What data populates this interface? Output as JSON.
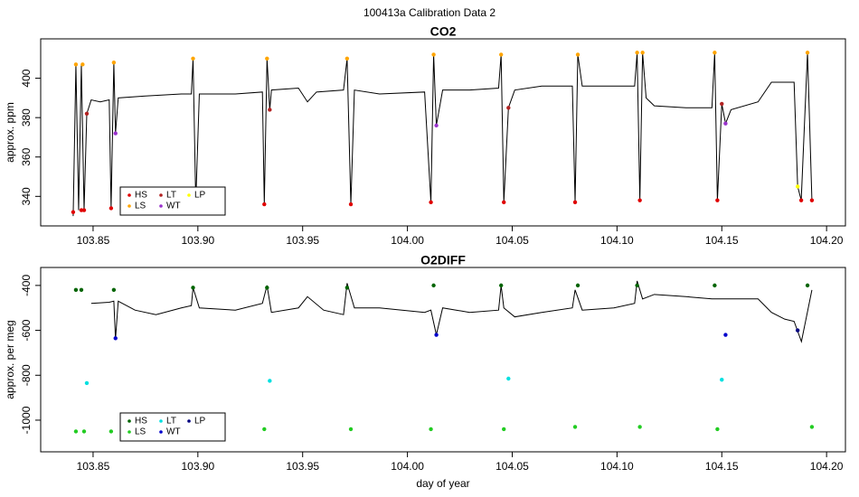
{
  "title": "100413a   Calibration Data 2",
  "chart_data": [
    {
      "type": "line",
      "title": "CO2",
      "ylabel": "approx. ppm",
      "xlim": [
        103.825,
        104.209
      ],
      "ylim": [
        325,
        420
      ],
      "xticks": [
        103.85,
        {
          "value": 103.9,
          "label": "103.90"
        },
        103.95,
        {
          "value": 104.0,
          "label": "104.00"
        },
        104.05,
        {
          "value": 104.1,
          "label": "104.10"
        },
        104.15,
        {
          "value": 104.2,
          "label": "104.20"
        }
      ],
      "yticks": [
        340,
        360,
        380,
        400
      ],
      "legend": "bottomleft",
      "series": [
        {
          "type": "line",
          "color": "#000000",
          "x": [
            103.8405,
            103.8418,
            103.8431,
            103.8444,
            103.8457,
            103.847,
            103.8491,
            103.8534,
            103.8577,
            103.8586,
            103.8599,
            103.8607,
            103.862,
            103.8749,
            103.8921,
            103.8969,
            103.8977,
            103.899,
            103.9007,
            103.9179,
            103.9308,
            103.9317,
            103.933,
            103.9343,
            103.9351,
            103.948,
            103.9523,
            103.9566,
            103.9695,
            103.9712,
            103.973,
            103.9747,
            103.9867,
            104.0082,
            104.0112,
            104.0125,
            104.0138,
            104.0168,
            104.0297,
            104.0435,
            104.0447,
            104.046,
            104.0482,
            104.0512,
            104.0641,
            104.0787,
            104.08,
            104.0813,
            104.0834,
            104.0985,
            104.1084,
            104.1096,
            104.1109,
            104.1122,
            104.1139,
            104.1178,
            104.1329,
            104.1453,
            104.1466,
            104.1479,
            104.15,
            104.1518,
            104.1544,
            104.1673,
            104.1737,
            104.1845,
            104.1862,
            104.1879,
            104.1909,
            104.193
          ],
          "values": [
            330,
            407,
            333,
            407,
            333,
            382,
            389,
            388,
            389,
            334,
            408,
            372,
            390,
            391,
            392,
            392,
            410,
            337,
            392,
            392,
            393,
            336,
            410,
            384,
            394,
            395,
            388,
            393,
            394,
            410,
            336,
            394,
            392,
            393,
            337,
            412,
            376,
            394,
            394,
            395,
            412,
            337,
            385,
            394,
            396,
            396,
            337,
            412,
            396,
            396,
            396,
            413,
            338,
            413,
            390,
            386,
            385,
            385,
            413,
            338,
            387,
            377,
            384,
            388,
            398,
            398,
            345,
            338,
            413,
            338
          ]
        },
        {
          "type": "scatter",
          "name": "HS",
          "color": "#e00000",
          "x": [
            103.8405,
            103.8444,
            103.8457,
            103.8586,
            103.9317,
            103.973,
            104.0112,
            104.046,
            104.08,
            104.1109,
            104.1479,
            104.1879,
            104.193
          ],
          "values": [
            332,
            333,
            333,
            334,
            336,
            336,
            337,
            337,
            337,
            338,
            338,
            338,
            338
          ]
        },
        {
          "type": "scatter",
          "name": "LS",
          "color": "#ffa500",
          "x": [
            103.8418,
            103.845,
            103.8599,
            103.8977,
            103.933,
            103.9712,
            104.0125,
            104.0447,
            104.0813,
            104.1096,
            104.1122,
            104.1466,
            104.1909
          ],
          "values": [
            407,
            407,
            408,
            410,
            410,
            410,
            412,
            412,
            412,
            413,
            413,
            413,
            413
          ]
        },
        {
          "type": "scatter",
          "name": "LT",
          "color": "#b22222",
          "x": [
            103.847,
            103.9343,
            104.0482,
            104.15
          ],
          "values": [
            382,
            384,
            385,
            387
          ]
        },
        {
          "type": "scatter",
          "name": "WT",
          "color": "#9932cc",
          "x": [
            103.8607,
            104.0138,
            104.1518
          ],
          "values": [
            372,
            376,
            377
          ]
        },
        {
          "type": "scatter",
          "name": "LP",
          "color": "#ffff00",
          "x": [
            104.1862
          ],
          "values": [
            345
          ]
        }
      ]
    },
    {
      "type": "line",
      "title": "O2DIFF",
      "ylabel": "approx. per meg",
      "xlabel": "day of year",
      "xlim": [
        103.825,
        104.209
      ],
      "ylim": [
        -1141,
        -320
      ],
      "xticks": [
        103.85,
        {
          "value": 103.9,
          "label": "103.90"
        },
        103.95,
        {
          "value": 104.0,
          "label": "104.00"
        },
        104.05,
        {
          "value": 104.1,
          "label": "104.10"
        },
        104.15,
        {
          "value": 104.2,
          "label": "104.20"
        }
      ],
      "yticks": [
        -1000,
        -800,
        -600,
        -400
      ],
      "legend": "bottomleft",
      "series": [
        {
          "type": "line",
          "color": "#000000",
          "x": [
            103.8491,
            103.8577,
            103.8599,
            103.8607,
            103.862,
            103.87,
            103.88,
            103.8921,
            103.8969,
            103.8977,
            103.9007,
            103.9179,
            103.9308,
            103.933,
            103.9351,
            103.948,
            103.9523,
            103.96,
            103.9695,
            103.9712,
            103.9747,
            103.9867,
            104.0082,
            104.0112,
            104.0138,
            104.0168,
            104.0297,
            104.0435,
            104.0447,
            104.046,
            104.0512,
            104.0641,
            104.0787,
            104.08,
            104.0834,
            104.0985,
            104.1084,
            104.1096,
            104.1122,
            104.1178,
            104.1329,
            104.1453,
            104.15,
            104.1673,
            104.1737,
            104.18,
            104.1845,
            104.188,
            104.193
          ],
          "values": [
            -480,
            -475,
            -470,
            -640,
            -470,
            -510,
            -530,
            -500,
            -490,
            -410,
            -500,
            -510,
            -480,
            -400,
            -520,
            -500,
            -450,
            -510,
            -530,
            -390,
            -500,
            -500,
            -520,
            -510,
            -620,
            -500,
            -520,
            -510,
            -400,
            -500,
            -540,
            -520,
            -500,
            -420,
            -510,
            -500,
            -480,
            -380,
            -460,
            -440,
            -450,
            -460,
            -460,
            -460,
            -520,
            -550,
            -560,
            -650,
            -420
          ]
        },
        {
          "type": "scatter",
          "name": "HS",
          "color": "#006400",
          "x": [
            103.8418,
            103.8444,
            103.8599,
            103.8977,
            103.933,
            103.9712,
            104.0125,
            104.0447,
            104.0813,
            104.1096,
            104.1466,
            104.1909
          ],
          "values": [
            -420,
            -420,
            -420,
            -410,
            -410,
            -410,
            -400,
            -400,
            -400,
            -400,
            -400,
            -400
          ]
        },
        {
          "type": "scatter",
          "name": "LS",
          "color": "#22cc22",
          "x": [
            103.8418,
            103.8457,
            103.8586,
            103.9317,
            103.973,
            104.0112,
            104.046,
            104.08,
            104.1109,
            104.1479,
            104.193
          ],
          "values": [
            -1050,
            -1050,
            -1050,
            -1040,
            -1040,
            -1040,
            -1040,
            -1030,
            -1030,
            -1040,
            -1030
          ]
        },
        {
          "type": "scatter",
          "name": "LT",
          "color": "#00e0e0",
          "x": [
            103.847,
            103.9343,
            104.0482,
            104.15
          ],
          "values": [
            -835,
            -825,
            -815,
            -820
          ]
        },
        {
          "type": "scatter",
          "name": "WT",
          "color": "#0000cc",
          "x": [
            103.8607,
            104.0138,
            104.1518
          ],
          "values": [
            -635,
            -620,
            -620
          ]
        },
        {
          "type": "scatter",
          "name": "LP",
          "color": "#000080",
          "x": [
            104.1862
          ],
          "values": [
            -600
          ]
        }
      ]
    }
  ]
}
